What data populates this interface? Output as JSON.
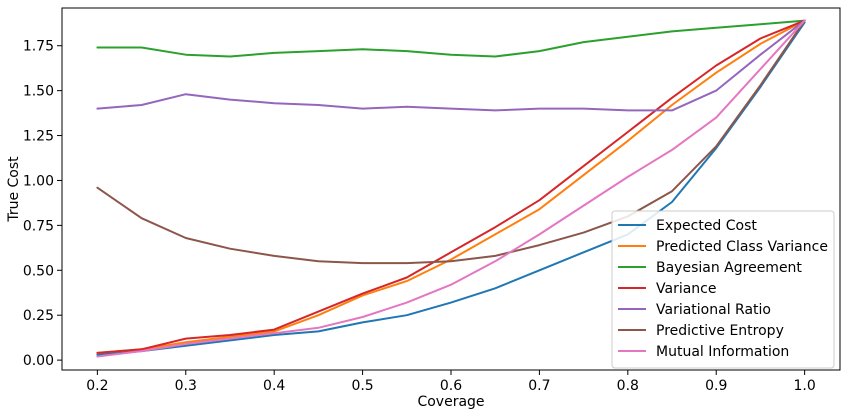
{
  "chart_data": {
    "type": "line",
    "title": "",
    "xlabel": "Coverage",
    "ylabel": "True Cost",
    "xlim": [
      0.16,
      1.04
    ],
    "ylim": [
      -0.055,
      1.96
    ],
    "xticks": [
      0.2,
      0.3,
      0.4,
      0.5,
      0.6,
      0.7,
      0.8,
      0.9,
      1.0
    ],
    "xtick_labels": [
      "0.2",
      "0.3",
      "0.4",
      "0.5",
      "0.6",
      "0.7",
      "0.8",
      "0.9",
      "1.0"
    ],
    "yticks": [
      0.0,
      0.25,
      0.5,
      0.75,
      1.0,
      1.25,
      1.5,
      1.75
    ],
    "ytick_labels": [
      "0.00",
      "0.25",
      "0.50",
      "0.75",
      "1.00",
      "1.25",
      "1.50",
      "1.75"
    ],
    "grid": false,
    "legend_position": "lower-right",
    "series": [
      {
        "name": "Expected Cost",
        "color": "#1f77b4",
        "x": [
          0.2,
          0.25,
          0.3,
          0.35,
          0.4,
          0.45,
          0.5,
          0.55,
          0.6,
          0.65,
          0.7,
          0.75,
          0.8,
          0.85,
          0.9,
          0.95,
          1.0
        ],
        "y": [
          0.03,
          0.05,
          0.08,
          0.11,
          0.14,
          0.16,
          0.21,
          0.25,
          0.32,
          0.4,
          0.5,
          0.6,
          0.7,
          0.88,
          1.18,
          1.52,
          1.88
        ]
      },
      {
        "name": "Predicted Class Variance",
        "color": "#ff7f0e",
        "x": [
          0.2,
          0.25,
          0.3,
          0.35,
          0.4,
          0.45,
          0.5,
          0.55,
          0.6,
          0.65,
          0.7,
          0.75,
          0.8,
          0.85,
          0.9,
          0.95,
          1.0
        ],
        "y": [
          0.04,
          0.06,
          0.1,
          0.13,
          0.16,
          0.25,
          0.36,
          0.44,
          0.56,
          0.7,
          0.84,
          1.03,
          1.22,
          1.42,
          1.6,
          1.76,
          1.89
        ]
      },
      {
        "name": "Bayesian Agreement",
        "color": "#2ca02c",
        "x": [
          0.2,
          0.25,
          0.3,
          0.35,
          0.4,
          0.45,
          0.5,
          0.55,
          0.6,
          0.65,
          0.7,
          0.75,
          0.8,
          0.85,
          0.9,
          0.95,
          1.0
        ],
        "y": [
          1.74,
          1.74,
          1.7,
          1.69,
          1.71,
          1.72,
          1.73,
          1.72,
          1.7,
          1.69,
          1.72,
          1.77,
          1.8,
          1.83,
          1.85,
          1.87,
          1.89
        ]
      },
      {
        "name": "Variance",
        "color": "#d62728",
        "x": [
          0.2,
          0.25,
          0.3,
          0.35,
          0.4,
          0.45,
          0.5,
          0.55,
          0.6,
          0.65,
          0.7,
          0.75,
          0.8,
          0.85,
          0.9,
          0.95,
          1.0
        ],
        "y": [
          0.04,
          0.06,
          0.12,
          0.14,
          0.17,
          0.27,
          0.37,
          0.46,
          0.6,
          0.74,
          0.89,
          1.08,
          1.27,
          1.46,
          1.64,
          1.79,
          1.89
        ]
      },
      {
        "name": "Variational Ratio",
        "color": "#9467bd",
        "x": [
          0.2,
          0.25,
          0.3,
          0.35,
          0.4,
          0.45,
          0.5,
          0.55,
          0.6,
          0.65,
          0.7,
          0.75,
          0.8,
          0.85,
          0.9,
          0.95,
          1.0
        ],
        "y": [
          1.4,
          1.42,
          1.48,
          1.45,
          1.43,
          1.42,
          1.4,
          1.41,
          1.4,
          1.39,
          1.4,
          1.4,
          1.39,
          1.39,
          1.5,
          1.7,
          1.89
        ]
      },
      {
        "name": "Predictive Entropy",
        "color": "#8c564b",
        "x": [
          0.2,
          0.25,
          0.3,
          0.35,
          0.4,
          0.45,
          0.5,
          0.55,
          0.6,
          0.65,
          0.7,
          0.75,
          0.8,
          0.85,
          0.9,
          0.95,
          1.0
        ],
        "y": [
          0.96,
          0.79,
          0.68,
          0.62,
          0.58,
          0.55,
          0.54,
          0.54,
          0.55,
          0.58,
          0.64,
          0.71,
          0.8,
          0.94,
          1.19,
          1.53,
          1.89
        ]
      },
      {
        "name": "Mutual Information",
        "color": "#e377c2",
        "x": [
          0.2,
          0.25,
          0.3,
          0.35,
          0.4,
          0.45,
          0.5,
          0.55,
          0.6,
          0.65,
          0.7,
          0.75,
          0.8,
          0.85,
          0.9,
          0.95,
          1.0
        ],
        "y": [
          0.02,
          0.05,
          0.09,
          0.12,
          0.15,
          0.18,
          0.24,
          0.32,
          0.42,
          0.55,
          0.7,
          0.86,
          1.02,
          1.17,
          1.35,
          1.62,
          1.89
        ]
      }
    ]
  }
}
